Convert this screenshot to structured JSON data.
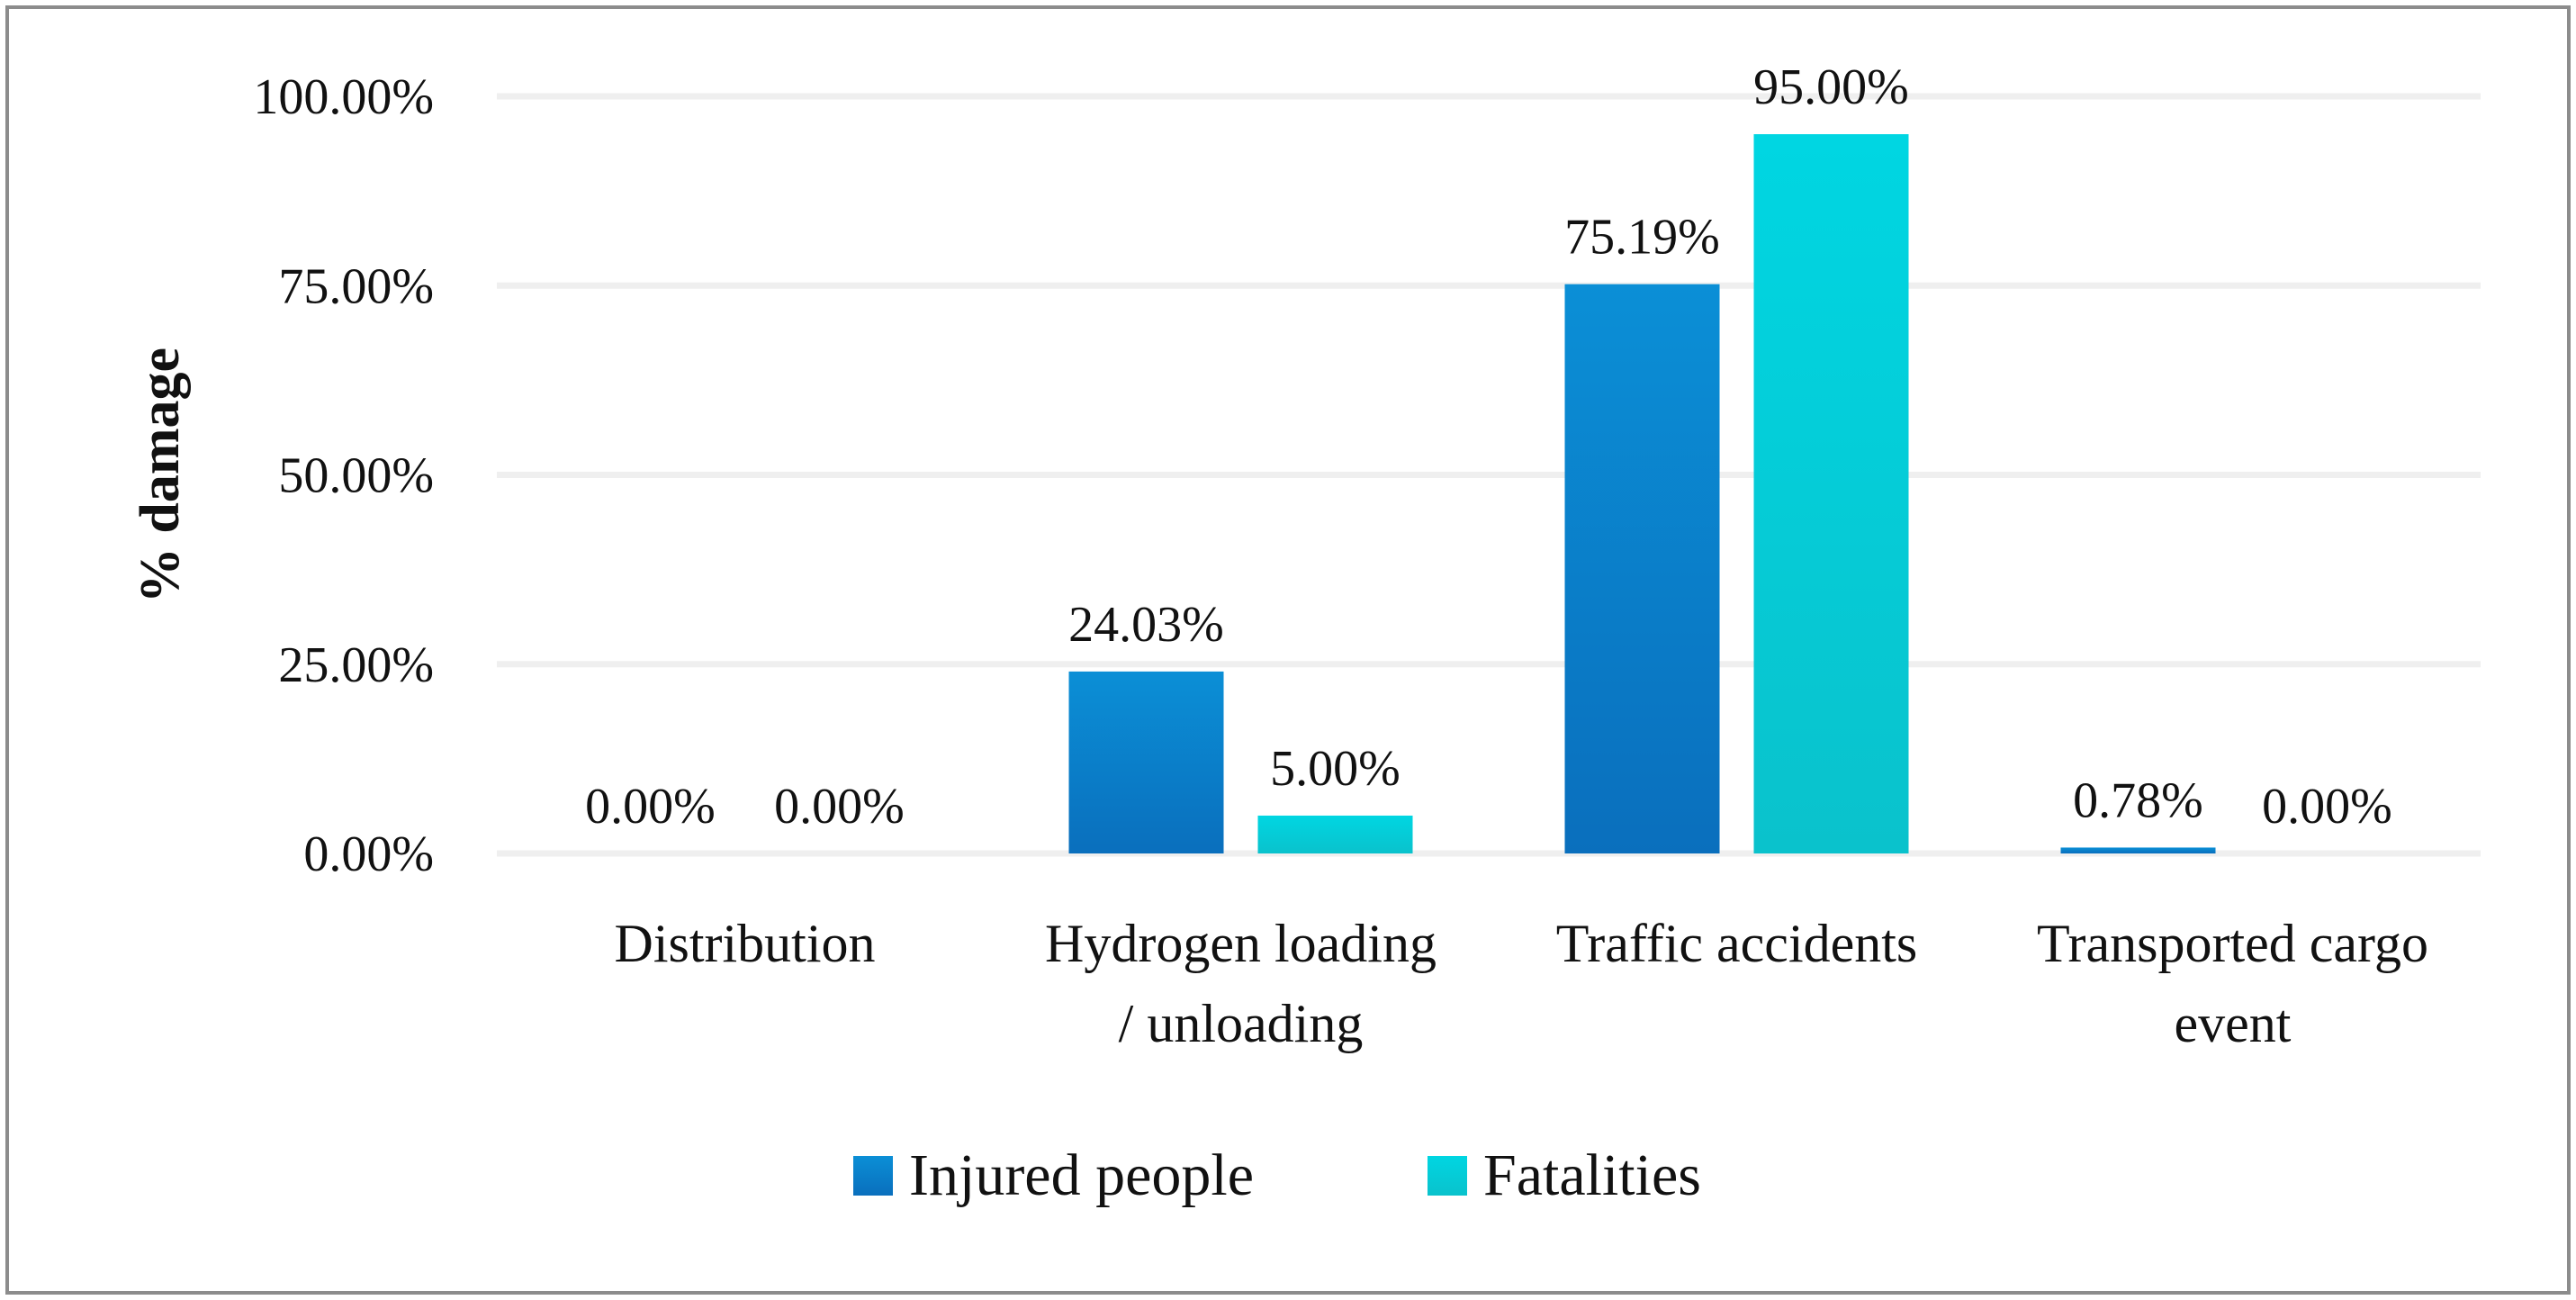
{
  "chart_data": {
    "type": "bar",
    "title": "",
    "xlabel": "",
    "ylabel": "% damage",
    "ylim": [
      0,
      100
    ],
    "yticks": [
      {
        "value": 0,
        "label": "0.00%"
      },
      {
        "value": 25,
        "label": "25.00%"
      },
      {
        "value": 50,
        "label": "50.00%"
      },
      {
        "value": 75,
        "label": "75.00%"
      },
      {
        "value": 100,
        "label": "100.00%"
      }
    ],
    "categories": [
      {
        "lines": [
          "Distribution"
        ]
      },
      {
        "lines": [
          "Hydrogen loading",
          "/ unloading"
        ]
      },
      {
        "lines": [
          "Traffic accidents"
        ]
      },
      {
        "lines": [
          "Transported cargo",
          "event"
        ]
      }
    ],
    "series": [
      {
        "name": "Injured people",
        "color": "#0f80cc",
        "color_top": "#0b8fd6",
        "color_bottom": "#0a6fbd",
        "values": [
          0.0,
          24.03,
          75.19,
          0.78
        ],
        "labels": [
          "0.00%",
          "24.03%",
          "75.19%",
          "0.78%"
        ]
      },
      {
        "name": "Fatalities",
        "color": "#0dd0dc",
        "color_top": "#00d6e2",
        "color_bottom": "#0ac2cc",
        "values": [
          0.0,
          5.0,
          95.0,
          0.0
        ],
        "labels": [
          "0.00%",
          "5.00%",
          "95.00%",
          "0.00%"
        ]
      }
    ],
    "grid": true,
    "legend_position": "bottom"
  }
}
